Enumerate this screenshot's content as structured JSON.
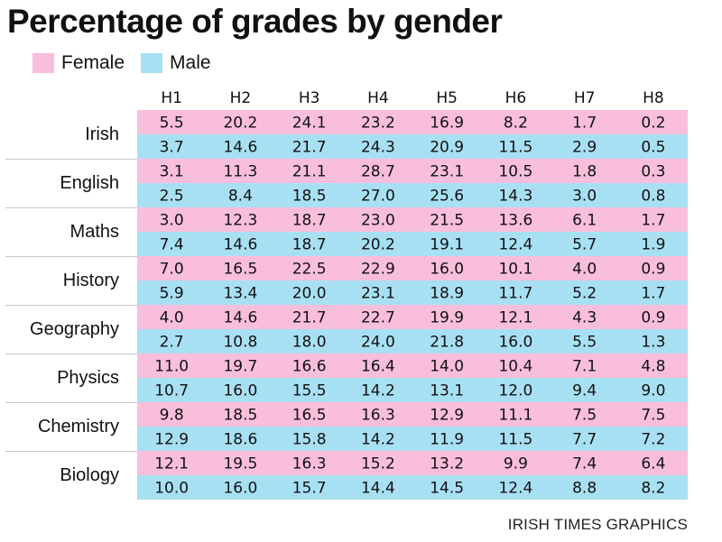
{
  "chart_data": {
    "type": "table",
    "title": "Percentage of grades by gender",
    "legend": [
      {
        "name": "Female",
        "color": "#f9bedb"
      },
      {
        "name": "Male",
        "color": "#a8e0f3"
      }
    ],
    "columns": [
      "H1",
      "H2",
      "H3",
      "H4",
      "H5",
      "H6",
      "H7",
      "H8"
    ],
    "rows": [
      {
        "subject": "Irish",
        "female": [
          "5.5",
          "20.2",
          "24.1",
          "23.2",
          "16.9",
          "8.2",
          "1.7",
          "0.2"
        ],
        "male": [
          "3.7",
          "14.6",
          "21.7",
          "24.3",
          "20.9",
          "11.5",
          "2.9",
          "0.5"
        ]
      },
      {
        "subject": "English",
        "female": [
          "3.1",
          "11.3",
          "21.1",
          "28.7",
          "23.1",
          "10.5",
          "1.8",
          "0.3"
        ],
        "male": [
          "2.5",
          "8.4",
          "18.5",
          "27.0",
          "25.6",
          "14.3",
          "3.0",
          "0.8"
        ]
      },
      {
        "subject": "Maths",
        "female": [
          "3.0",
          "12.3",
          "18.7",
          "23.0",
          "21.5",
          "13.6",
          "6.1",
          "1.7"
        ],
        "male": [
          "7.4",
          "14.6",
          "18.7",
          "20.2",
          "19.1",
          "12.4",
          "5.7",
          "1.9"
        ]
      },
      {
        "subject": "History",
        "female": [
          "7.0",
          "16.5",
          "22.5",
          "22.9",
          "16.0",
          "10.1",
          "4.0",
          "0.9"
        ],
        "male": [
          "5.9",
          "13.4",
          "20.0",
          "23.1",
          "18.9",
          "11.7",
          "5.2",
          "1.7"
        ]
      },
      {
        "subject": "Geography",
        "female": [
          "4.0",
          "14.6",
          "21.7",
          "22.7",
          "19.9",
          "12.1",
          "4.3",
          "0.9"
        ],
        "male": [
          "2.7",
          "10.8",
          "18.0",
          "24.0",
          "21.8",
          "16.0",
          "5.5",
          "1.3"
        ]
      },
      {
        "subject": "Physics",
        "female": [
          "11.0",
          "19.7",
          "16.6",
          "16.4",
          "14.0",
          "10.4",
          "7.1",
          "4.8"
        ],
        "male": [
          "10.7",
          "16.0",
          "15.5",
          "14.2",
          "13.1",
          "12.0",
          "9.4",
          "9.0"
        ]
      },
      {
        "subject": "Chemistry",
        "female": [
          "9.8",
          "18.5",
          "16.5",
          "16.3",
          "12.9",
          "11.1",
          "7.5",
          "7.5"
        ],
        "male": [
          "12.9",
          "18.6",
          "15.8",
          "14.2",
          "11.9",
          "11.5",
          "7.7",
          "7.2"
        ]
      },
      {
        "subject": "Biology",
        "female": [
          "12.1",
          "19.5",
          "16.3",
          "15.2",
          "13.2",
          "9.9",
          "7.4",
          "6.4"
        ],
        "male": [
          "10.0",
          "16.0",
          "15.7",
          "14.4",
          "14.5",
          "12.4",
          "8.8",
          "8.2"
        ]
      }
    ]
  },
  "credit": "IRISH TIMES GRAPHICS"
}
